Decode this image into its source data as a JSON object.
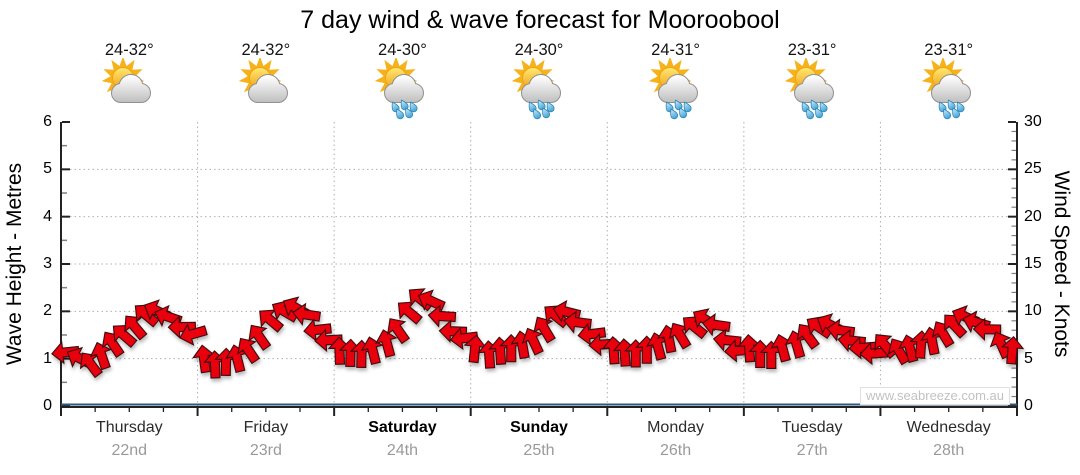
{
  "title": "7 day wind & wave forecast for Mooroobool",
  "watermark": "www.seabreeze.com.au",
  "days": [
    {
      "name": "Thursday",
      "date": "22nd",
      "temp": "24-32°",
      "icon": "sun-cloud",
      "bold": false
    },
    {
      "name": "Friday",
      "date": "23rd",
      "temp": "24-32°",
      "icon": "sun-cloud",
      "bold": false
    },
    {
      "name": "Saturday",
      "date": "24th",
      "temp": "24-30°",
      "icon": "sun-cloud-rain",
      "bold": true
    },
    {
      "name": "Sunday",
      "date": "25th",
      "temp": "24-30°",
      "icon": "sun-cloud-rain",
      "bold": true
    },
    {
      "name": "Monday",
      "date": "26th",
      "temp": "24-31°",
      "icon": "sun-cloud-rain",
      "bold": false
    },
    {
      "name": "Tuesday",
      "date": "27th",
      "temp": "23-31°",
      "icon": "sun-cloud-rain",
      "bold": false
    },
    {
      "name": "Wednesday",
      "date": "28th",
      "temp": "23-31°",
      "icon": "sun-cloud-rain",
      "bold": false
    }
  ],
  "colors": {
    "arrow_fill": "#e8000b",
    "arrow_outline": "#3c0a0a",
    "wave_line": "#2e5a7c",
    "grid": "#b0b0b0",
    "axis": "#222222",
    "minor_tick": "#808080",
    "day_text": "#2b2b2b",
    "date_text": "#9a9a9a",
    "watermark_text": "#c2c2c2"
  },
  "chart_data": {
    "type": "wind-arrow-timeseries",
    "left_axis": {
      "label": "Wave Height - Metres",
      "range": [
        0,
        6
      ],
      "major_ticks": [
        0,
        1,
        2,
        3,
        4,
        5,
        6
      ]
    },
    "right_axis": {
      "label": "Wind Speed - Knots",
      "range": [
        0,
        30
      ],
      "major_ticks": [
        0,
        5,
        10,
        15,
        20,
        25,
        30
      ]
    },
    "grid": {
      "horizontal_at_metres": [
        1,
        2,
        3,
        4,
        5
      ],
      "vertical_at_day_boundaries": true
    },
    "wave_height_metres": {
      "description": "flat navy line at 0 m across all 7 days",
      "value": 0
    },
    "wind": {
      "samples_per_day": 12,
      "direction_convention": "degrees of arrow rotation: 0 = pointing up (screen north), negative = rotated counter-clockwise toward left (west)",
      "series": [
        {
          "day": "Thursday",
          "speeds_knots": [
            5.5,
            5,
            4.5,
            5.5,
            6.5,
            7.5,
            8.5,
            9.5,
            10,
            9.5,
            8.5,
            7.5
          ],
          "directions_deg": [
            -90,
            -65,
            -35,
            -25,
            -35,
            -45,
            -45,
            -50,
            -60,
            -75,
            -90,
            -100
          ]
        },
        {
          "day": "Friday",
          "speeds_knots": [
            5,
            4.5,
            4.5,
            5,
            6,
            7.5,
            9,
            10,
            10.5,
            9.5,
            8,
            7
          ],
          "directions_deg": [
            -10,
            0,
            -5,
            -15,
            -30,
            -40,
            -50,
            -55,
            -65,
            -80,
            -90,
            -95
          ]
        },
        {
          "day": "Saturday",
          "speeds_knots": [
            6,
            5.5,
            5.5,
            6,
            6.5,
            8,
            10,
            11.5,
            11,
            9.5,
            8,
            7
          ],
          "directions_deg": [
            0,
            -5,
            0,
            -10,
            -20,
            -35,
            -45,
            -55,
            -65,
            -80,
            -90,
            -95
          ]
        },
        {
          "day": "Sunday",
          "speeds_knots": [
            6,
            5.5,
            6,
            6,
            6.5,
            7,
            8,
            9.5,
            10,
            9,
            7.5,
            6.5
          ],
          "directions_deg": [
            0,
            -5,
            0,
            -5,
            -10,
            -20,
            -35,
            -50,
            -70,
            -85,
            -95,
            -100
          ]
        },
        {
          "day": "Monday",
          "speeds_knots": [
            6,
            5.5,
            5.5,
            6,
            6.5,
            7,
            7.5,
            8.5,
            9,
            8.5,
            7,
            6
          ],
          "directions_deg": [
            -5,
            0,
            -5,
            0,
            -10,
            -15,
            -30,
            -45,
            -60,
            -80,
            -90,
            -95
          ]
        },
        {
          "day": "Tuesday",
          "speeds_knots": [
            6,
            5.5,
            5.5,
            6,
            6.5,
            7.5,
            8.5,
            8.5,
            8,
            7,
            6,
            5.5
          ],
          "directions_deg": [
            0,
            -5,
            0,
            -10,
            -20,
            -35,
            -50,
            -65,
            -80,
            -90,
            -95,
            -90
          ]
        },
        {
          "day": "Wednesday",
          "speeds_knots": [
            6.5,
            6,
            6,
            6.5,
            7,
            7.5,
            8.5,
            9.5,
            9,
            8,
            6.5,
            6
          ],
          "directions_deg": [
            -45,
            -30,
            -10,
            0,
            -10,
            -25,
            -45,
            -65,
            -80,
            -90,
            -20,
            0
          ]
        }
      ]
    }
  }
}
